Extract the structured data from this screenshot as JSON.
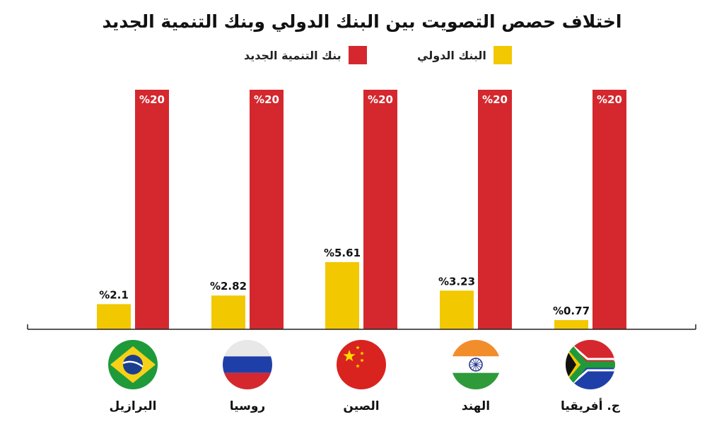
{
  "chart_data": {
    "type": "bar",
    "title": "اختلاف حصص التصويت بين البنك الدولي وبنك التنمية الجديد",
    "categories": [
      "البرازيل",
      "روسيا",
      "الصين",
      "الهند",
      "ج. أفريقيا"
    ],
    "series": [
      {
        "name": "البنك الدولي",
        "color": "#f2c800",
        "values": [
          2.1,
          2.82,
          5.61,
          3.23,
          0.77
        ],
        "labels": [
          "%2.1",
          "%2.82",
          "%5.61",
          "%3.23",
          "%0.77"
        ]
      },
      {
        "name": "بنك التنمية الجديد",
        "color": "#d4282e",
        "values": [
          20,
          20,
          20,
          20,
          20
        ],
        "labels": [
          "%20",
          "%20",
          "%20",
          "%20",
          "%20"
        ]
      }
    ],
    "flags": [
      "brazil-flag-icon",
      "russia-flag-icon",
      "china-flag-icon",
      "india-flag-icon",
      "south-africa-flag-icon"
    ],
    "ylim": [
      0,
      20
    ]
  },
  "legend": {
    "world_bank": "البنك الدولي",
    "ndb": "بنك التنمية الجديد"
  }
}
